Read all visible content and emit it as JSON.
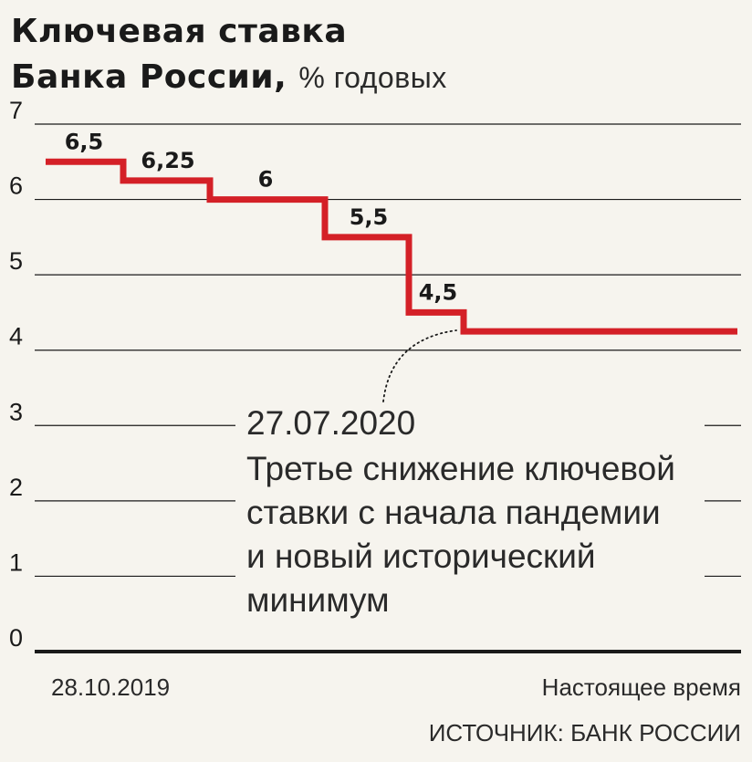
{
  "title": {
    "main_line1": "Ключевая ставка",
    "main_line2": "Банка России,",
    "unit": "% годовых"
  },
  "chart_data": {
    "type": "line",
    "step": true,
    "title": "Ключевая ставка Банка России, % годовых",
    "ylim": [
      0,
      7
    ],
    "yticks": [
      0,
      1,
      2,
      3,
      4,
      5,
      6,
      7
    ],
    "grid": true,
    "x_start_label": "28.10.2019",
    "x_end_label": "Настоящее время",
    "line_color": "#d42027",
    "segments": [
      {
        "value": 6.5,
        "label": "6,5"
      },
      {
        "value": 6.25,
        "label": "6,25"
      },
      {
        "value": 6,
        "label": "6"
      },
      {
        "value": 5.5,
        "label": "5,5"
      },
      {
        "value": 4.5,
        "label": "4,5"
      },
      {
        "value": 4.25,
        "label": ""
      }
    ],
    "annotation": {
      "date": "27.07.2020",
      "lines": [
        "Третье снижение ключевой",
        "ставки с начала пандемии",
        "и новый исторический",
        "минимум"
      ]
    }
  },
  "source": "ИСТОЧНИК: БАНК РОССИИ"
}
